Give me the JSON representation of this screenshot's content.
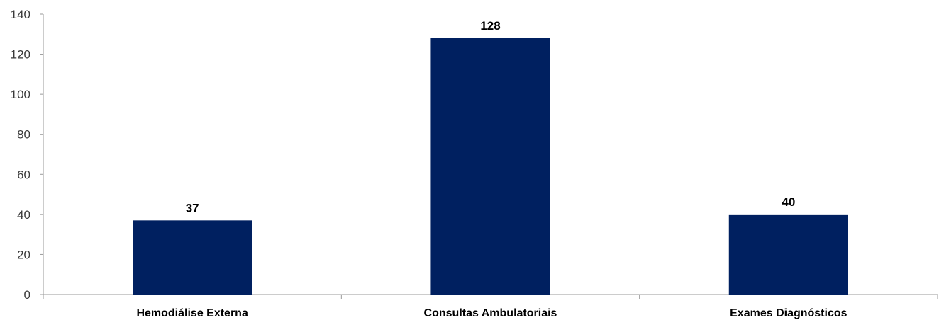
{
  "chart_data": {
    "type": "bar",
    "title": "",
    "xlabel": "",
    "ylabel": "",
    "categories": [
      "Hemodiálise Externa",
      "Consultas Ambulatoriais",
      "Exames Diagnósticos"
    ],
    "values": [
      37,
      128,
      40
    ],
    "data_labels": [
      "37",
      "128",
      "40"
    ],
    "ylim": [
      0,
      140
    ],
    "yticks": [
      0,
      20,
      40,
      60,
      80,
      100,
      120,
      140
    ],
    "grid": false,
    "legend": "none",
    "bar_color": "#002060"
  }
}
